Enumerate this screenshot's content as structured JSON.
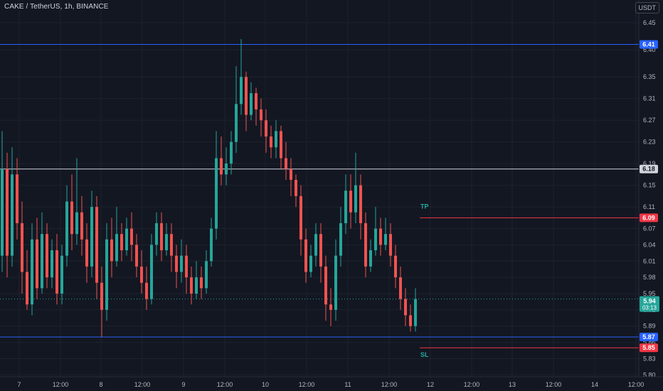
{
  "header": {
    "title": "CAKE / TetherUS, 1h, BINANCE",
    "unit": "USDT"
  },
  "colors": {
    "background": "#131722",
    "up": "#26a69a",
    "down": "#ef5350",
    "blue_line": "#2962ff",
    "white_line": "#d1d4dc",
    "red_line": "#f23645",
    "grid": "#1e222d",
    "axis_text": "#b2b5be"
  },
  "chart_data": {
    "type": "candlestick",
    "title": "CAKE / TetherUS, 1h, BINANCE",
    "y_axis_ticks": [
      "6.45",
      "6.40",
      "6.35",
      "6.31",
      "6.27",
      "6.23",
      "6.19",
      "6.15",
      "6.11",
      "6.07",
      "6.04",
      "6.01",
      "5.98",
      "5.95",
      "5.92",
      "5.89",
      "5.86",
      "5.83",
      "5.80"
    ],
    "x_axis_labels": [
      "7",
      "12:00",
      "8",
      "12:00",
      "9",
      "12:00",
      "10",
      "12:00",
      "11",
      "12:00",
      "12",
      "12:00",
      "13",
      "12:00",
      "14",
      "12:00"
    ],
    "grid": true,
    "levels": [
      {
        "label": "6.41",
        "value": 6.41,
        "color": "#2962ff",
        "style": "solid",
        "span": "full"
      },
      {
        "label": "6.18",
        "value": 6.18,
        "color": "#d1d4dc",
        "style": "solid",
        "span": "full"
      },
      {
        "label": "6.09",
        "value": 6.09,
        "color": "#f23645",
        "style": "solid",
        "span": "target",
        "annotation": "TP"
      },
      {
        "label": "5.87",
        "value": 5.87,
        "color": "#2962ff",
        "style": "solid",
        "span": "full"
      },
      {
        "label": "5.85",
        "value": 5.85,
        "color": "#f23645",
        "style": "solid",
        "span": "target",
        "annotation": "SL"
      }
    ],
    "current_price": {
      "label": "5.94",
      "value": 5.94,
      "countdown": "03:13"
    },
    "candles": [
      [
        6.02,
        6.18,
        6.25,
        5.99
      ],
      [
        6.18,
        6.02,
        6.21,
        5.98
      ],
      [
        6.02,
        6.17,
        6.22,
        6.0
      ],
      [
        6.17,
        6.08,
        6.2,
        6.05
      ],
      [
        6.08,
        5.99,
        6.12,
        5.95
      ],
      [
        5.99,
        5.93,
        6.03,
        5.92
      ],
      [
        5.93,
        6.05,
        6.08,
        5.91
      ],
      [
        6.05,
        5.96,
        6.09,
        5.94
      ],
      [
        5.96,
        6.06,
        6.1,
        5.95
      ],
      [
        6.06,
        5.98,
        6.08,
        5.96
      ],
      [
        5.98,
        6.03,
        6.05,
        5.96
      ],
      [
        6.03,
        5.95,
        6.06,
        5.93
      ],
      [
        5.95,
        6.02,
        6.04,
        5.93
      ],
      [
        6.02,
        6.12,
        6.15,
        6.0
      ],
      [
        6.12,
        6.06,
        6.17,
        6.03
      ],
      [
        6.06,
        6.1,
        6.2,
        6.04
      ],
      [
        6.1,
        6.05,
        6.13,
        6.02
      ],
      [
        6.05,
        6.0,
        6.08,
        5.97
      ],
      [
        6.0,
        6.11,
        6.14,
        5.98
      ],
      [
        6.11,
        5.97,
        6.13,
        5.94
      ],
      [
        5.97,
        5.92,
        6.0,
        5.87
      ],
      [
        5.92,
        6.05,
        6.08,
        5.9
      ],
      [
        6.05,
        6.01,
        6.09,
        5.98
      ],
      [
        6.01,
        6.06,
        6.11,
        6.0
      ],
      [
        6.06,
        6.03,
        6.08,
        6.01
      ],
      [
        6.03,
        6.07,
        6.09,
        6.02
      ],
      [
        6.07,
        6.04,
        6.1,
        6.01
      ],
      [
        6.04,
        6.0,
        6.06,
        5.98
      ],
      [
        6.0,
        5.97,
        6.03,
        5.95
      ],
      [
        5.97,
        5.94,
        6.0,
        5.92
      ],
      [
        5.94,
        6.04,
        6.06,
        5.93
      ],
      [
        6.04,
        6.08,
        6.1,
        6.02
      ],
      [
        6.08,
        6.03,
        6.1,
        6.01
      ],
      [
        6.03,
        6.06,
        6.08,
        6.02
      ],
      [
        6.06,
        6.02,
        6.08,
        5.99
      ],
      [
        6.02,
        5.99,
        6.04,
        5.96
      ],
      [
        5.99,
        6.02,
        6.05,
        5.97
      ],
      [
        6.02,
        5.98,
        6.04,
        5.95
      ],
      [
        5.98,
        5.95,
        6.0,
        5.93
      ],
      [
        5.95,
        5.98,
        6.01,
        5.94
      ],
      [
        5.98,
        5.96,
        6.0,
        5.94
      ],
      [
        5.96,
        6.01,
        6.03,
        5.95
      ],
      [
        6.01,
        6.07,
        6.09,
        6.0
      ],
      [
        6.07,
        6.2,
        6.25,
        6.05
      ],
      [
        6.2,
        6.17,
        6.24,
        6.15
      ],
      [
        6.17,
        6.19,
        6.22,
        6.15
      ],
      [
        6.19,
        6.23,
        6.25,
        6.17
      ],
      [
        6.23,
        6.3,
        6.37,
        6.21
      ],
      [
        6.3,
        6.35,
        6.42,
        6.28
      ],
      [
        6.35,
        6.28,
        6.36,
        6.25
      ],
      [
        6.28,
        6.32,
        6.34,
        6.27
      ],
      [
        6.32,
        6.29,
        6.33,
        6.26
      ],
      [
        6.29,
        6.27,
        6.31,
        6.24
      ],
      [
        6.27,
        6.24,
        6.29,
        6.21
      ],
      [
        6.24,
        6.22,
        6.26,
        6.2
      ],
      [
        6.22,
        6.25,
        6.27,
        6.2
      ],
      [
        6.25,
        6.2,
        6.26,
        6.18
      ],
      [
        6.2,
        6.18,
        6.23,
        6.16
      ],
      [
        6.18,
        6.16,
        6.2,
        6.13
      ],
      [
        6.16,
        6.13,
        6.17,
        6.11
      ],
      [
        6.13,
        6.05,
        6.15,
        6.02
      ],
      [
        6.05,
        5.99,
        6.07,
        5.97
      ],
      [
        5.99,
        6.02,
        6.04,
        5.98
      ],
      [
        6.02,
        6.06,
        6.08,
        6.0
      ],
      [
        6.06,
        6.0,
        6.08,
        5.97
      ],
      [
        6.0,
        5.93,
        6.02,
        5.9
      ],
      [
        5.93,
        5.92,
        5.96,
        5.89
      ],
      [
        5.92,
        6.02,
        6.05,
        5.9
      ],
      [
        6.02,
        6.08,
        6.11,
        6.0
      ],
      [
        6.08,
        6.14,
        6.17,
        6.06
      ],
      [
        6.14,
        6.1,
        6.17,
        6.07
      ],
      [
        6.1,
        6.15,
        6.21,
        6.08
      ],
      [
        6.15,
        6.08,
        6.17,
        6.05
      ],
      [
        6.08,
        6.0,
        6.1,
        5.98
      ],
      [
        6.0,
        6.03,
        6.05,
        5.99
      ],
      [
        6.03,
        6.07,
        6.11,
        6.02
      ],
      [
        6.07,
        6.04,
        6.09,
        6.02
      ],
      [
        6.04,
        6.06,
        6.09,
        6.03
      ],
      [
        6.06,
        6.02,
        6.08,
        6.0
      ],
      [
        6.02,
        5.98,
        6.04,
        5.96
      ],
      [
        5.98,
        5.94,
        6.0,
        5.92
      ],
      [
        5.94,
        5.91,
        5.96,
        5.89
      ],
      [
        5.91,
        5.89,
        5.93,
        5.88
      ],
      [
        5.89,
        5.94,
        5.96,
        5.88
      ]
    ]
  }
}
